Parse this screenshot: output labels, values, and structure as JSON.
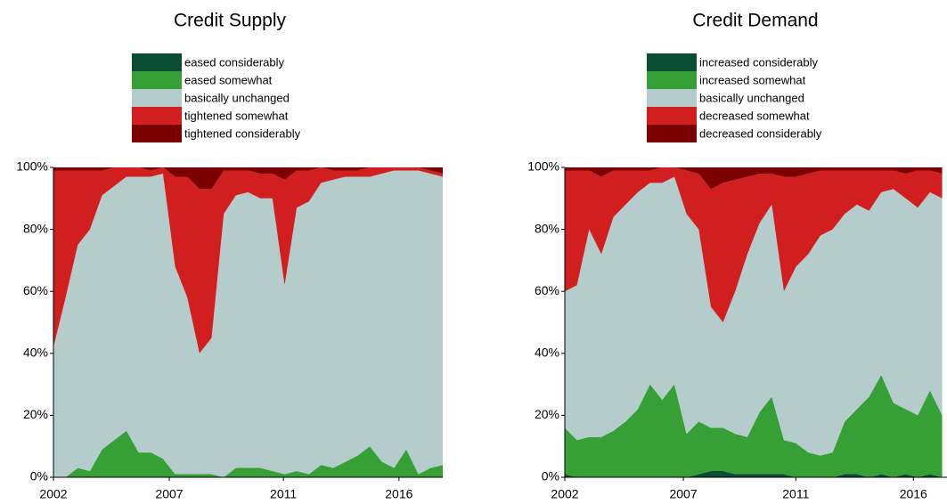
{
  "chart_data": [
    {
      "type": "area",
      "stacked": true,
      "title": "Credit Supply",
      "x": [
        2002,
        2002.5,
        2003,
        2003.5,
        2004,
        2004.5,
        2005,
        2005.5,
        2006,
        2006.5,
        2007,
        2007.5,
        2008,
        2008.5,
        2009,
        2009.5,
        2010,
        2010.5,
        2011,
        2011.5,
        2012,
        2012.5,
        2013,
        2013.5,
        2014,
        2014.5,
        2015,
        2015.5,
        2016,
        2016.5,
        2017,
        2017.5,
        2018
      ],
      "xlim": [
        2002,
        2018
      ],
      "xticks": [
        {
          "value": 2002,
          "label": "2002"
        },
        {
          "value": 2006.76,
          "label": "2007"
        },
        {
          "value": 2011.45,
          "label": "2011"
        },
        {
          "value": 2016.2,
          "label": "2016"
        }
      ],
      "ylim": [
        0,
        100
      ],
      "yticks": [
        {
          "value": 0,
          "label": "0%"
        },
        {
          "value": 20,
          "label": "20%"
        },
        {
          "value": 40,
          "label": "40%"
        },
        {
          "value": 60,
          "label": "60%"
        },
        {
          "value": 80,
          "label": "80%"
        },
        {
          "value": 100,
          "label": "100%"
        }
      ],
      "series": [
        {
          "name": "eased considerably",
          "color": "#0b4d33",
          "values": [
            0,
            0,
            0,
            0,
            0,
            0,
            0,
            0,
            0,
            0,
            0,
            0,
            0,
            0,
            0,
            0,
            0,
            0,
            0,
            0,
            0,
            0,
            0,
            0,
            0,
            0,
            0,
            0,
            0,
            0,
            0,
            0,
            0
          ]
        },
        {
          "name": "eased somewhat",
          "color": "#36a037",
          "values": [
            0,
            0,
            3,
            2,
            9,
            12,
            15,
            8,
            8,
            6,
            1,
            1,
            1,
            1,
            0,
            3,
            3,
            3,
            2,
            1,
            2,
            1,
            4,
            3,
            5,
            7,
            10,
            5,
            3,
            9,
            1,
            3,
            4
          ]
        },
        {
          "name": "basically unchanged",
          "color": "#b4cccc",
          "values": [
            42,
            58,
            72,
            78,
            82,
            82,
            82,
            89,
            89,
            92,
            67,
            57,
            39,
            44,
            85,
            88,
            89,
            87,
            88,
            61,
            85,
            88,
            91,
            93,
            92,
            90,
            87,
            93,
            96,
            90,
            98,
            95,
            93
          ]
        },
        {
          "name": "tightened somewhat",
          "color": "#d11e1e",
          "values": [
            57,
            41,
            24,
            19,
            8,
            6,
            3,
            3,
            2,
            2,
            29,
            39,
            53,
            48,
            14,
            8,
            7,
            8,
            8,
            34,
            12,
            10,
            5,
            3,
            2,
            2,
            3,
            2,
            1,
            1,
            1,
            1,
            1
          ]
        },
        {
          "name": "tightened considerably",
          "color": "#7a0000",
          "values": [
            1,
            1,
            1,
            1,
            1,
            0,
            0,
            0,
            1,
            0,
            3,
            3,
            7,
            7,
            1,
            1,
            1,
            2,
            2,
            4,
            1,
            1,
            0,
            1,
            1,
            1,
            0,
            0,
            0,
            0,
            0,
            1,
            2
          ]
        }
      ]
    },
    {
      "type": "area",
      "stacked": true,
      "title": "Credit Demand",
      "x": [
        2002,
        2002.5,
        2003,
        2003.5,
        2004,
        2004.5,
        2005,
        2005.5,
        2006,
        2006.5,
        2007,
        2007.5,
        2008,
        2008.5,
        2009,
        2009.5,
        2010,
        2010.5,
        2011,
        2011.5,
        2012,
        2012.5,
        2013,
        2013.5,
        2014,
        2014.5,
        2015,
        2015.5,
        2016,
        2016.5,
        2017,
        2017.5
      ],
      "xlim": [
        2002,
        2017.7
      ],
      "xticks": [
        {
          "value": 2002,
          "label": "2002"
        },
        {
          "value": 2006.87,
          "label": "2007"
        },
        {
          "value": 2011.49,
          "label": "2011"
        },
        {
          "value": 2016.32,
          "label": "2016"
        }
      ],
      "ylim": [
        0,
        100
      ],
      "yticks": [
        {
          "value": 0,
          "label": "0%"
        },
        {
          "value": 20,
          "label": "20%"
        },
        {
          "value": 40,
          "label": "40%"
        },
        {
          "value": 60,
          "label": "60%"
        },
        {
          "value": 80,
          "label": "80%"
        },
        {
          "value": 100,
          "label": "100%"
        }
      ],
      "series": [
        {
          "name": "increased considerably",
          "color": "#0b4d33",
          "values": [
            1,
            0,
            0,
            0,
            0,
            0,
            0,
            0,
            0,
            0,
            0,
            1,
            2,
            2,
            1,
            1,
            1,
            1,
            1,
            0,
            0,
            0,
            0,
            1,
            1,
            0,
            1,
            0,
            1,
            0,
            1,
            0
          ]
        },
        {
          "name": "increased somewhat",
          "color": "#36a037",
          "values": [
            15,
            12,
            13,
            13,
            15,
            18,
            22,
            30,
            25,
            30,
            14,
            17,
            14,
            14,
            13,
            12,
            20,
            25,
            11,
            11,
            8,
            7,
            8,
            17,
            21,
            26,
            32,
            24,
            21,
            20,
            27,
            20
          ]
        },
        {
          "name": "basically unchanged",
          "color": "#b4cccc",
          "values": [
            44,
            50,
            67,
            59,
            69,
            70,
            70,
            65,
            70,
            67,
            71,
            62,
            39,
            34,
            46,
            59,
            61,
            62,
            48,
            57,
            64,
            71,
            72,
            67,
            66,
            60,
            59,
            69,
            68,
            67,
            64,
            70
          ]
        },
        {
          "name": "decreased somewhat",
          "color": "#d11e1e",
          "values": [
            39,
            37,
            19,
            25,
            15,
            11,
            7,
            4,
            5,
            3,
            14,
            18,
            38,
            45,
            36,
            25,
            16,
            10,
            37,
            29,
            26,
            21,
            19,
            14,
            11,
            13,
            7,
            6,
            8,
            12,
            7,
            8
          ]
        },
        {
          "name": "decreased considerably",
          "color": "#7a0000",
          "values": [
            1,
            1,
            1,
            3,
            1,
            1,
            1,
            1,
            0,
            0,
            1,
            2,
            7,
            5,
            4,
            3,
            2,
            2,
            3,
            3,
            2,
            1,
            1,
            1,
            1,
            1,
            1,
            1,
            2,
            1,
            1,
            2
          ]
        }
      ]
    }
  ]
}
